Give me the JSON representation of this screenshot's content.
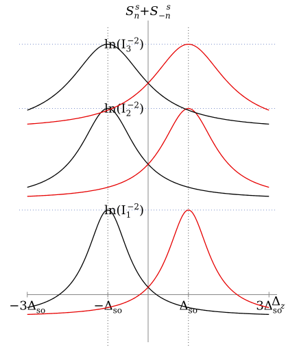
{
  "chart_data": {
    "type": "line",
    "title": "",
    "ylabel": "S_n^s + S_-n^s",
    "xlabel": "Δ_z",
    "xlim": [
      -3.2,
      3.2
    ],
    "ylim": [
      -0.4,
      4.05
    ],
    "grid": false,
    "x_ticks": [
      {
        "value": -3,
        "label": "−3Δ",
        "sub": "so"
      },
      {
        "value": -1,
        "label": "−Δ",
        "sub": "so"
      },
      {
        "value": 1,
        "label": "Δ",
        "sub": "so"
      },
      {
        "value": 3,
        "label": "3Δ",
        "sub": "so"
      }
    ],
    "x_vertical_dotted_at": [
      -1,
      1
    ],
    "levels": [
      {
        "label_main": "ln(I",
        "label_sub": "1",
        "label_sup": "−2",
        "label_tail": ")",
        "peak": 1.25,
        "floor": -0.33,
        "width": 0.62
      },
      {
        "label_main": "ln(I",
        "label_sub": "2",
        "label_sup": "−2",
        "label_tail": ")",
        "peak": 2.75,
        "floor": 1.4,
        "width": 0.8
      },
      {
        "label_main": "ln(I",
        "label_sub": "3",
        "label_sup": "−2",
        "label_tail": ")",
        "peak": 3.7,
        "floor": 2.43,
        "width": 1.1
      }
    ],
    "series": [
      {
        "color": "#000000",
        "center": -1
      },
      {
        "color": "#e60000",
        "center": 1
      }
    ]
  }
}
